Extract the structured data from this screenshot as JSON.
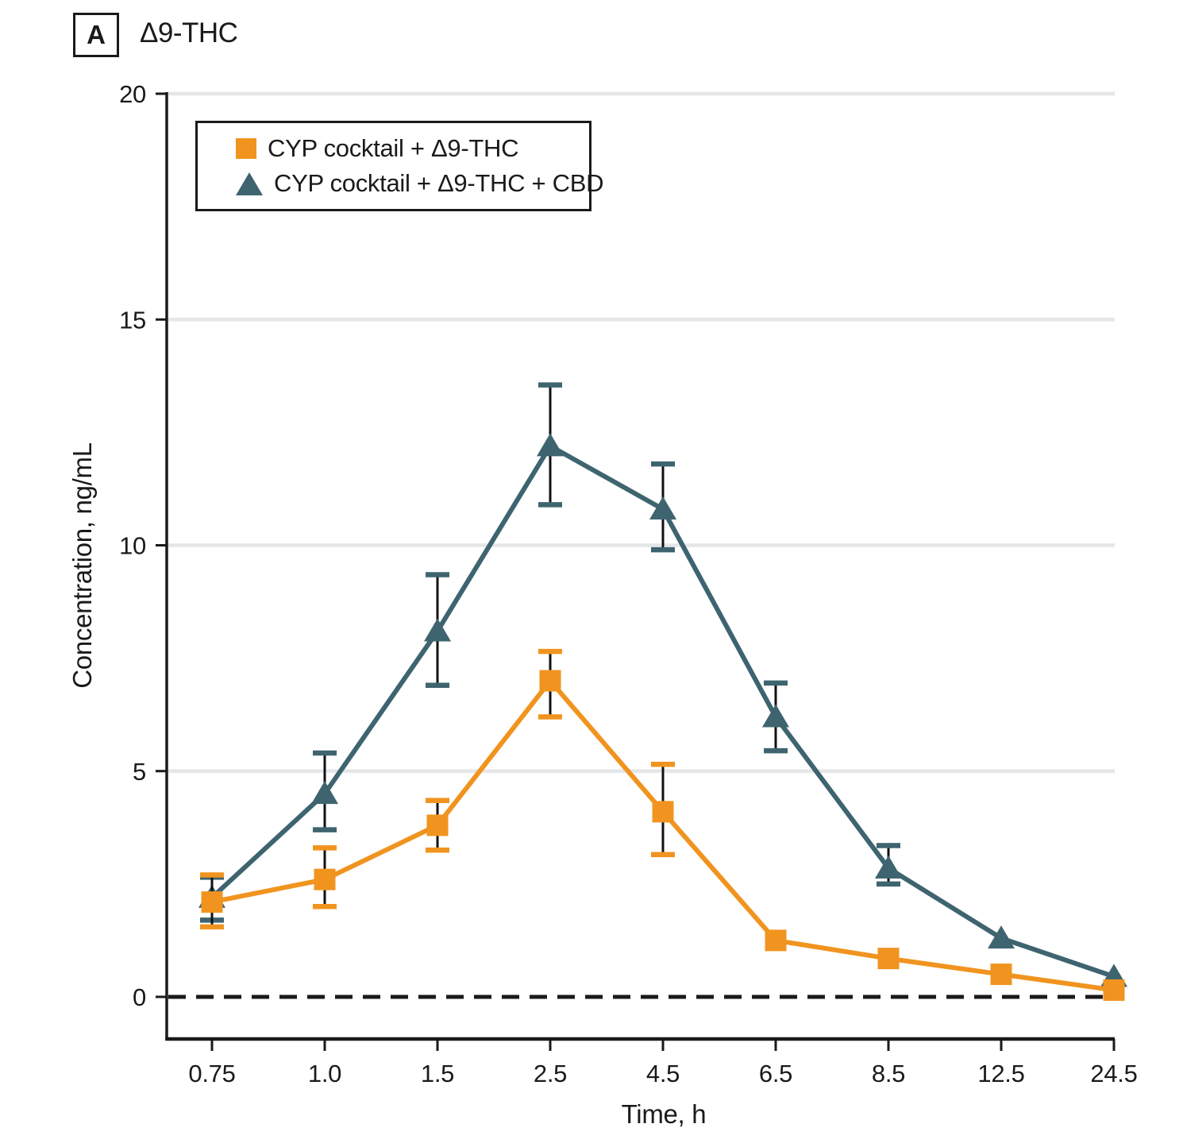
{
  "panel": {
    "label": "A",
    "title": "Δ9-THC"
  },
  "colors": {
    "accent_orange": "#F0941F",
    "accent_teal": "#3E6470",
    "axis": "#1A1A1A",
    "text": "#1A1A1A",
    "grid": "#E4E6E8",
    "error_bar_line": "#111111",
    "background": "#FFFFFF"
  },
  "legend": {
    "rows": [
      {
        "marker": "square"
      },
      {
        "marker": "triangle"
      }
    ]
  },
  "chart_data": {
    "type": "line",
    "title": "Δ9-THC",
    "xlabel": "Time, h",
    "ylabel": "Concentration, ng/mL",
    "x_labels": [
      "0.75",
      "1.0",
      "1.5",
      "2.5",
      "4.5",
      "6.5",
      "8.5",
      "12.5",
      "24.5"
    ],
    "yticks": [
      0,
      5,
      10,
      15,
      20
    ],
    "ylim": [
      0,
      20
    ],
    "grid": "horizontal-light",
    "grid_values": [
      5,
      10,
      15,
      20
    ],
    "zero_baseline_dashed": true,
    "legend_position": "top-left-inside",
    "series": [
      {
        "name": "CYP cocktail + Δ9-THC + CBD",
        "marker": "triangle",
        "color_key": "accent_teal",
        "values": [
          2.2,
          4.5,
          8.1,
          12.2,
          10.8,
          6.2,
          2.85,
          1.3,
          0.45
        ],
        "err_up": [
          0.45,
          0.9,
          1.25,
          1.35,
          1.0,
          0.75,
          0.5,
          0,
          0
        ],
        "err_down": [
          0.5,
          0.8,
          1.2,
          1.3,
          0.9,
          0.75,
          0.35,
          0,
          0
        ]
      },
      {
        "name": "CYP cocktail + Δ9-THC",
        "marker": "square",
        "color_key": "accent_orange",
        "values": [
          2.1,
          2.6,
          3.8,
          7.0,
          4.1,
          1.25,
          0.85,
          0.5,
          0.15
        ],
        "err_up": [
          0.6,
          0.7,
          0.55,
          0.65,
          1.05,
          0,
          0,
          0,
          0
        ],
        "err_down": [
          0.55,
          0.6,
          0.55,
          0.8,
          0.95,
          0,
          0,
          0,
          0
        ]
      }
    ]
  }
}
